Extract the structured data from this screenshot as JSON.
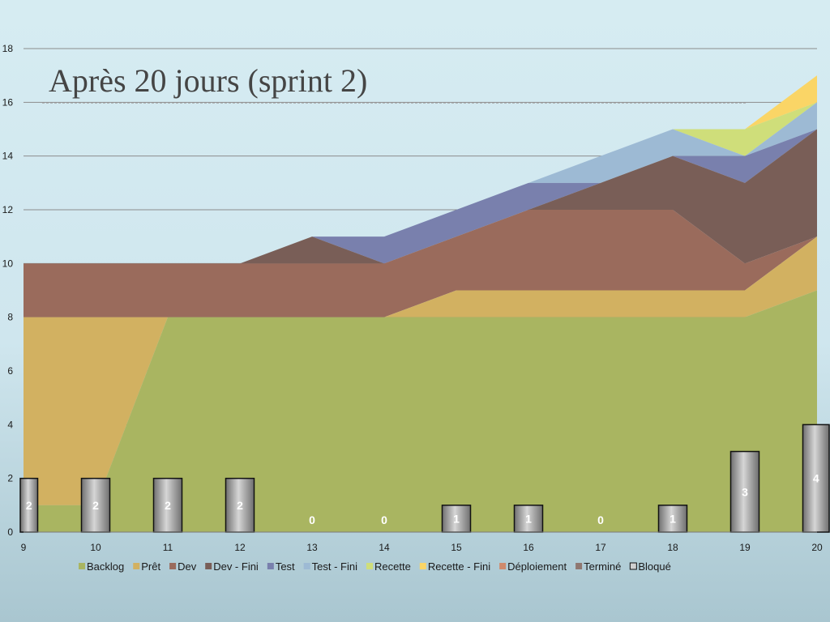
{
  "slide": {
    "title": "Après 20 jours (sprint 2)"
  },
  "chart_data": {
    "type": "area",
    "title": "Après 20 jours (sprint 2)",
    "xlabel": "",
    "ylabel": "",
    "ylim": [
      0,
      18
    ],
    "yticks": [
      0,
      2,
      4,
      6,
      8,
      10,
      12,
      14,
      16,
      18
    ],
    "grid": true,
    "legend": "bottom",
    "x": [
      9,
      10,
      11,
      12,
      13,
      14,
      15,
      16,
      17,
      18,
      19,
      20
    ],
    "stacked_series": [
      {
        "name": "Backlog",
        "color": "#a9b561",
        "values": [
          1,
          1,
          8,
          8,
          8,
          8,
          8,
          8,
          8,
          8,
          8,
          9
        ]
      },
      {
        "name": "Prêt",
        "color": "#d2b161",
        "values": [
          7,
          7,
          0,
          0,
          0,
          0,
          1,
          1,
          1,
          1,
          1,
          2
        ]
      },
      {
        "name": "Dev",
        "color": "#9a6b5c",
        "values": [
          2,
          2,
          2,
          2,
          2,
          2,
          2,
          3,
          3,
          3,
          1,
          0
        ]
      },
      {
        "name": "Dev - Fini",
        "color": "#795e57",
        "values": [
          0,
          0,
          0,
          0,
          1,
          0,
          0,
          0,
          1,
          2,
          3,
          4
        ]
      },
      {
        "name": "Test",
        "color": "#7980ad",
        "values": [
          0,
          0,
          0,
          0,
          0,
          1,
          1,
          1,
          0,
          0,
          1,
          0
        ]
      },
      {
        "name": "Test - Fini",
        "color": "#9dbad4",
        "values": [
          0,
          0,
          0,
          0,
          0,
          0,
          0,
          0,
          1,
          1,
          0,
          1
        ]
      },
      {
        "name": "Recette",
        "color": "#cfde7a",
        "values": [
          0,
          0,
          0,
          0,
          0,
          0,
          0,
          0,
          0,
          0,
          1,
          0
        ]
      },
      {
        "name": "Recette - Fini",
        "color": "#fad566",
        "values": [
          0,
          0,
          0,
          0,
          0,
          0,
          0,
          0,
          0,
          0,
          0,
          1
        ]
      },
      {
        "name": "Déploiement",
        "color": "#cf8a6c",
        "values": [
          0,
          0,
          0,
          0,
          0,
          0,
          0,
          0,
          0,
          0,
          0,
          0
        ]
      },
      {
        "name": "Terminé",
        "color": "#8f7770",
        "values": [
          0,
          0,
          0,
          0,
          0,
          0,
          0,
          0,
          0,
          0,
          0,
          0
        ]
      }
    ],
    "bar_series": {
      "name": "Bloqué",
      "values": [
        2,
        2,
        2,
        2,
        0,
        0,
        1,
        1,
        0,
        1,
        3,
        4
      ],
      "labels": [
        "2",
        "2",
        "2",
        "2",
        "0",
        "0",
        "1",
        "1",
        "0",
        "1",
        "3",
        "4"
      ]
    },
    "legend_entries": [
      "Backlog",
      "Prêt",
      "Dev",
      "Dev - Fini",
      "Test",
      "Test - Fini",
      "Recette",
      "Recette - Fini",
      "Déploiement",
      "Terminé",
      "Bloqué"
    ]
  }
}
